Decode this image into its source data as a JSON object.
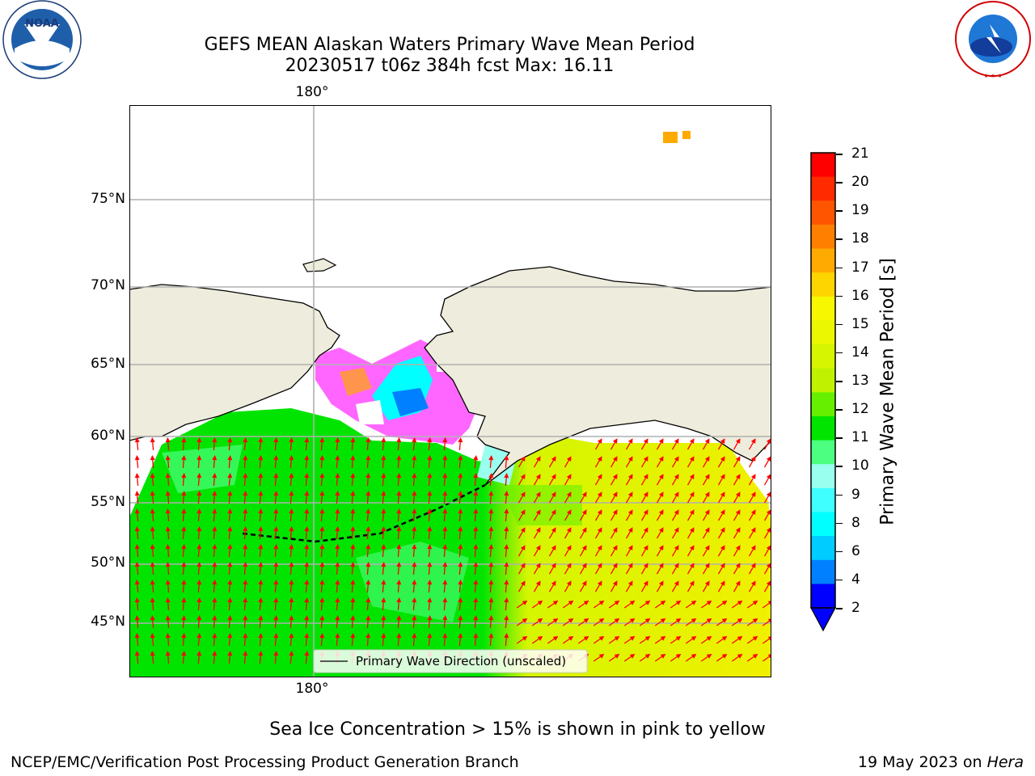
{
  "header": {
    "title_line1": "GEFS MEAN Alaskan Waters Primary Wave Mean Period",
    "title_line2": "20230517 t06z 384h fcst   Max: 16.11"
  },
  "logos": {
    "noaa_text": "NOAA",
    "noaa_ring": "NATIONAL OCEANIC AND ATMOSPHERIC ADMINISTRATION · U.S. DEPARTMENT OF COMMERCE",
    "nws_ring": "NATIONAL WEATHER SERVICE"
  },
  "map": {
    "lon_top": "180°",
    "lon_bottom": "180°",
    "lat_labels": [
      "75°N",
      "70°N",
      "65°N",
      "60°N",
      "55°N",
      "50°N",
      "45°N"
    ],
    "legend_text": "Primary Wave Direction (unscaled)",
    "colors": {
      "land": "#eeecdc",
      "ocean_west": "#00e400",
      "ocean_east": "#f0f000",
      "arrow": "#ff0000",
      "grid": "#b0b0b0"
    }
  },
  "colorbar": {
    "label": "Primary Wave Mean Period [s]",
    "ticks": [
      "21",
      "20",
      "19",
      "18",
      "17",
      "16",
      "15",
      "14",
      "13",
      "12",
      "11",
      "10",
      "9",
      "8",
      "6",
      "4",
      "2"
    ],
    "colors": [
      "#ff0000",
      "#ff2a00",
      "#ff5500",
      "#ff8000",
      "#ffaa00",
      "#ffd500",
      "#f7f700",
      "#eaf700",
      "#d5f500",
      "#c0f200",
      "#66f000",
      "#00e400",
      "#4cff80",
      "#99ffee",
      "#40ffff",
      "#00ffff",
      "#00ccff",
      "#0080ff",
      "#0000ff"
    ]
  },
  "footnote": "Sea Ice Concentration > 15% is shown in pink to yellow",
  "footer": {
    "left": "NCEP/EMC/Verification Post Processing Product Generation Branch",
    "right_prefix": "19 May 2023 on ",
    "right_machine": "Hera"
  }
}
